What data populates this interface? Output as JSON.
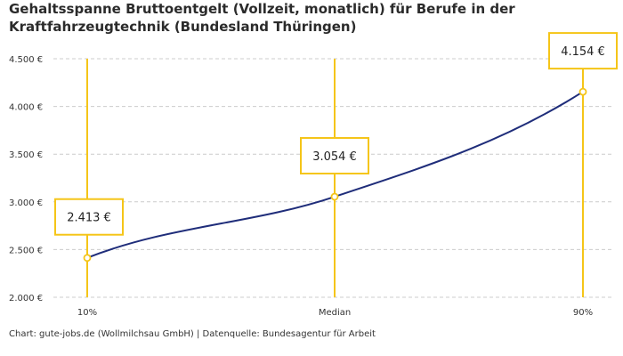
{
  "title": "Gehaltsspanne Bruttoentgelt (Vollzeit, monatlich) für Berufe in der Kraftfahrzeugtechnik (Bundesland Thüringen)",
  "credit": "Chart: gute-jobs.de (Wollmilchsau GmbH) | Datenquelle: Bundesagentur für Arbeit",
  "colors": {
    "line": "#1f2d7a",
    "accent": "#f5c518",
    "grid": "#cccccc"
  },
  "chart_data": {
    "type": "line",
    "categories": [
      "10%",
      "Median",
      "90%"
    ],
    "values": [
      2413,
      3054,
      4154
    ],
    "value_labels": [
      "2.413 €",
      "3.054 €",
      "4.154 €"
    ],
    "y_ticks": [
      2000,
      2500,
      3000,
      3500,
      4000,
      4500
    ],
    "y_tick_labels": [
      "2.000 €",
      "2.500 €",
      "3.000 €",
      "3.500 €",
      "4.000 €",
      "4.500 €"
    ],
    "ylim": [
      2000,
      4500
    ],
    "grid": true
  }
}
